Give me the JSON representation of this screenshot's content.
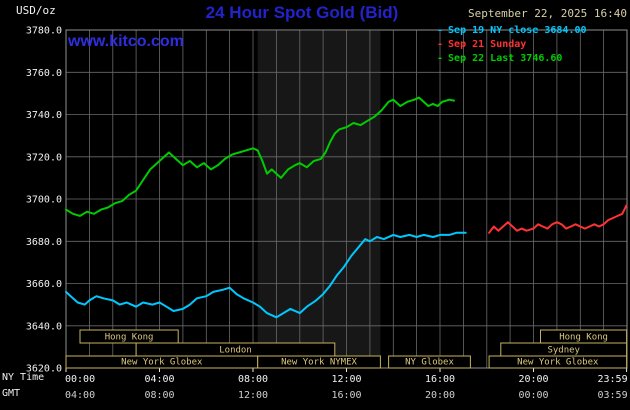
{
  "header": {
    "units_label": "USD/oz",
    "title": "24 Hour Spot Gold (Bid)",
    "datetime": "September 22, 2025 16:40",
    "watermark": "www.kitco.com"
  },
  "colors": {
    "background": "#000000",
    "title_blue": "#2323cd",
    "watermark_blue": "#2e2ee0",
    "datetime_tan": "#d9cfa6",
    "grid_gray": "#6a6a6a",
    "session_box_border": "#c7b35c",
    "session_box_text": "#dbc77e",
    "series_green": "#00cc00",
    "series_cyan": "#00c8ff",
    "series_red": "#ff3232"
  },
  "legend": [
    {
      "label": "Sep 19 NY close 3684.00",
      "color": "#00c8ff"
    },
    {
      "label": "Sep 21 Sunday",
      "color": "#ff3232"
    },
    {
      "label": "Sep 22 Last 3746.60",
      "color": "#00cc00"
    }
  ],
  "axes": {
    "ny_time_label": "NY Time",
    "gmt_label": "GMT",
    "y_ticks": [
      "3780.0",
      "3760.0",
      "3740.0",
      "3720.0",
      "3700.0",
      "3680.0",
      "3660.0",
      "3640.0",
      "3620.0"
    ],
    "x_ticks_ny": [
      "00:00",
      "04:00",
      "08:00",
      "12:00",
      "16:00",
      "20:00",
      "23:59"
    ],
    "x_ticks_gmt": [
      "04:00",
      "08:00",
      "12:00",
      "16:00",
      "20:00",
      "00:00",
      "03:59"
    ]
  },
  "chart_data": {
    "type": "line",
    "title": "24 Hour Spot Gold (Bid)",
    "ylabel": "USD/oz",
    "xlabel": "NY Time (hours)",
    "x_axis": {
      "min": 0,
      "max": 24,
      "tick_hours": [
        0,
        4,
        8,
        12,
        16,
        20,
        23.983
      ]
    },
    "y_axis": {
      "min": 3620,
      "max": 3780,
      "tick_step": 20
    },
    "grid": {
      "x_step_hours": 1,
      "y_step": 20,
      "on": true
    },
    "shaded_band_hours": [
      8.2,
      13.45
    ],
    "series": [
      {
        "id": "sep19-ny-close",
        "name": "Sep 19 NY close",
        "close": 3684.0,
        "color": "#00c8ff",
        "points": [
          [
            0,
            3656
          ],
          [
            0.2,
            3654
          ],
          [
            0.5,
            3651
          ],
          [
            0.8,
            3650
          ],
          [
            1.0,
            3652
          ],
          [
            1.3,
            3654
          ],
          [
            1.6,
            3653
          ],
          [
            2.0,
            3652
          ],
          [
            2.3,
            3650
          ],
          [
            2.6,
            3651
          ],
          [
            3.0,
            3649
          ],
          [
            3.3,
            3651
          ],
          [
            3.7,
            3650
          ],
          [
            4.0,
            3651
          ],
          [
            4.3,
            3649
          ],
          [
            4.6,
            3647
          ],
          [
            5.0,
            3648
          ],
          [
            5.3,
            3650
          ],
          [
            5.6,
            3653
          ],
          [
            6.0,
            3654
          ],
          [
            6.3,
            3656
          ],
          [
            6.7,
            3657
          ],
          [
            7.0,
            3658
          ],
          [
            7.3,
            3655
          ],
          [
            7.6,
            3653
          ],
          [
            8.0,
            3651
          ],
          [
            8.3,
            3649
          ],
          [
            8.6,
            3646
          ],
          [
            9.0,
            3644
          ],
          [
            9.3,
            3646
          ],
          [
            9.6,
            3648
          ],
          [
            10.0,
            3646
          ],
          [
            10.3,
            3649
          ],
          [
            10.7,
            3652
          ],
          [
            11.0,
            3655
          ],
          [
            11.3,
            3659
          ],
          [
            11.6,
            3664
          ],
          [
            11.9,
            3668
          ],
          [
            12.2,
            3673
          ],
          [
            12.5,
            3677
          ],
          [
            12.8,
            3681
          ],
          [
            13.0,
            3680
          ],
          [
            13.3,
            3682
          ],
          [
            13.6,
            3681
          ],
          [
            14.0,
            3683
          ],
          [
            14.3,
            3682
          ],
          [
            14.7,
            3683
          ],
          [
            15.0,
            3682
          ],
          [
            15.3,
            3683
          ],
          [
            15.7,
            3682
          ],
          [
            16.0,
            3683
          ],
          [
            16.4,
            3683
          ],
          [
            16.7,
            3684
          ],
          [
            17.1,
            3684
          ]
        ]
      },
      {
        "id": "sep21-sunday",
        "name": "Sep 21 Sunday",
        "color": "#ff3232",
        "points": [
          [
            18.1,
            3684
          ],
          [
            18.3,
            3687
          ],
          [
            18.5,
            3685
          ],
          [
            18.7,
            3687
          ],
          [
            18.9,
            3689
          ],
          [
            19.1,
            3687
          ],
          [
            19.3,
            3685
          ],
          [
            19.5,
            3686
          ],
          [
            19.7,
            3685
          ],
          [
            20.0,
            3686
          ],
          [
            20.2,
            3688
          ],
          [
            20.4,
            3687
          ],
          [
            20.6,
            3686
          ],
          [
            20.8,
            3688
          ],
          [
            21.0,
            3689
          ],
          [
            21.2,
            3688
          ],
          [
            21.4,
            3686
          ],
          [
            21.6,
            3687
          ],
          [
            21.8,
            3688
          ],
          [
            22.0,
            3687
          ],
          [
            22.2,
            3686
          ],
          [
            22.4,
            3687
          ],
          [
            22.6,
            3688
          ],
          [
            22.8,
            3687
          ],
          [
            23.0,
            3688
          ],
          [
            23.2,
            3690
          ],
          [
            23.4,
            3691
          ],
          [
            23.6,
            3692
          ],
          [
            23.8,
            3693
          ],
          [
            23.98,
            3697
          ]
        ]
      },
      {
        "id": "sep22-last",
        "name": "Sep 22 Last",
        "last": 3746.6,
        "color": "#00cc00",
        "points": [
          [
            0,
            3695
          ],
          [
            0.3,
            3693
          ],
          [
            0.6,
            3692
          ],
          [
            0.9,
            3694
          ],
          [
            1.2,
            3693
          ],
          [
            1.5,
            3695
          ],
          [
            1.8,
            3696
          ],
          [
            2.1,
            3698
          ],
          [
            2.4,
            3699
          ],
          [
            2.7,
            3702
          ],
          [
            3.0,
            3704
          ],
          [
            3.3,
            3709
          ],
          [
            3.6,
            3714
          ],
          [
            3.9,
            3717
          ],
          [
            4.1,
            3719
          ],
          [
            4.4,
            3722
          ],
          [
            4.7,
            3719
          ],
          [
            5.0,
            3716
          ],
          [
            5.3,
            3718
          ],
          [
            5.6,
            3715
          ],
          [
            5.9,
            3717
          ],
          [
            6.2,
            3714
          ],
          [
            6.5,
            3716
          ],
          [
            6.8,
            3719
          ],
          [
            7.1,
            3721
          ],
          [
            7.4,
            3722
          ],
          [
            7.7,
            3723
          ],
          [
            8.0,
            3724
          ],
          [
            8.2,
            3723
          ],
          [
            8.4,
            3718
          ],
          [
            8.6,
            3712
          ],
          [
            8.8,
            3714
          ],
          [
            9.0,
            3712
          ],
          [
            9.2,
            3710
          ],
          [
            9.5,
            3714
          ],
          [
            9.8,
            3716
          ],
          [
            10.0,
            3717
          ],
          [
            10.3,
            3715
          ],
          [
            10.6,
            3718
          ],
          [
            10.9,
            3719
          ],
          [
            11.1,
            3722
          ],
          [
            11.3,
            3727
          ],
          [
            11.5,
            3731
          ],
          [
            11.7,
            3733
          ],
          [
            12.0,
            3734
          ],
          [
            12.3,
            3736
          ],
          [
            12.6,
            3735
          ],
          [
            12.9,
            3737
          ],
          [
            13.2,
            3739
          ],
          [
            13.5,
            3742
          ],
          [
            13.8,
            3746
          ],
          [
            14.0,
            3747
          ],
          [
            14.3,
            3744
          ],
          [
            14.6,
            3746
          ],
          [
            14.9,
            3747
          ],
          [
            15.1,
            3748
          ],
          [
            15.3,
            3746
          ],
          [
            15.5,
            3744
          ],
          [
            15.7,
            3745
          ],
          [
            15.9,
            3744
          ],
          [
            16.1,
            3746
          ],
          [
            16.4,
            3747
          ],
          [
            16.6,
            3746.6
          ]
        ]
      }
    ],
    "sessions_rows": [
      [
        {
          "label": "Hong Kong",
          "start": 0.6,
          "end": 4.8
        },
        {
          "label": "Hong Kong",
          "start": 20.3,
          "end": 23.983
        }
      ],
      [
        {
          "label": "London",
          "start": 3.0,
          "end": 11.5
        },
        {
          "label": "Sydney",
          "start": 18.6,
          "end": 23.983
        }
      ],
      [
        {
          "label": "New York Globex",
          "start": 0.0,
          "end": 8.2
        },
        {
          "label": "New York NYMEX",
          "start": 8.2,
          "end": 13.45
        },
        {
          "label": "NY Globex",
          "start": 13.8,
          "end": 17.3
        },
        {
          "label": "New York Globex",
          "start": 18.1,
          "end": 23.983
        }
      ]
    ]
  }
}
